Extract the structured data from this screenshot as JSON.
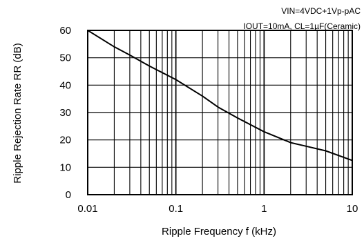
{
  "chart_data": {
    "type": "line",
    "x_scale": "log",
    "xlim": [
      0.01,
      10
    ],
    "ylim": [
      0,
      60
    ],
    "grid": true,
    "xlabel": "Ripple Frequency f (kHz)",
    "ylabel": "Ripple Rejection Rate RR (dB)",
    "annotations": [
      "VIN=4VDC+1Vp-pAC",
      "IOUT=10mA, CL=1µF(Ceramic)"
    ],
    "x_ticks": [
      "0.01",
      "0.1",
      "1",
      "10"
    ],
    "y_ticks": [
      "0",
      "10",
      "20",
      "30",
      "40",
      "50",
      "60"
    ],
    "series": [
      {
        "x": [
          0.01,
          0.02,
          0.03,
          0.05,
          0.1,
          0.2,
          0.3,
          0.5,
          1,
          2,
          3,
          5,
          10
        ],
        "y": [
          60,
          54,
          51,
          47,
          42,
          36,
          32,
          28,
          23,
          19,
          17.7,
          16,
          12.5
        ]
      }
    ]
  }
}
